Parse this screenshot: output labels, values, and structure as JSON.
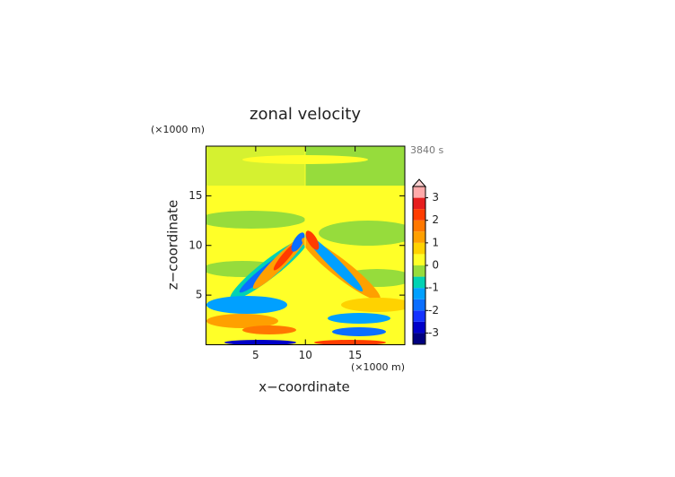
{
  "chart_data": {
    "type": "contour",
    "title": "zonal velocity",
    "x_label": "x−coordinate",
    "y_label": "z−coordinate",
    "x_unit": "(×1000 m)",
    "y_unit": "(×1000 m)",
    "time_label": "3840 s",
    "xlim": [
      0,
      20
    ],
    "ylim": [
      0,
      20
    ],
    "xticks": [
      5,
      10,
      15
    ],
    "yticks": [
      5,
      10,
      15
    ],
    "colorbar": {
      "levels": [
        -3.5,
        -3,
        -2.5,
        -2,
        -1.5,
        -1,
        -0.5,
        0,
        0.5,
        1,
        1.5,
        2,
        2.5,
        3,
        3.5
      ],
      "colors": [
        "#000080",
        "#0000c8",
        "#1432ff",
        "#0a6eff",
        "#00a0ff",
        "#00d2b4",
        "#96dc3c",
        "#ffff28",
        "#ffd200",
        "#ffa000",
        "#ff7800",
        "#ff3c00",
        "#e61e1e",
        "#ffaaaa"
      ],
      "ticks": [
        -3,
        -2,
        -1,
        0,
        1,
        2,
        3
      ],
      "extend_color": "#ffd2d2"
    }
  }
}
